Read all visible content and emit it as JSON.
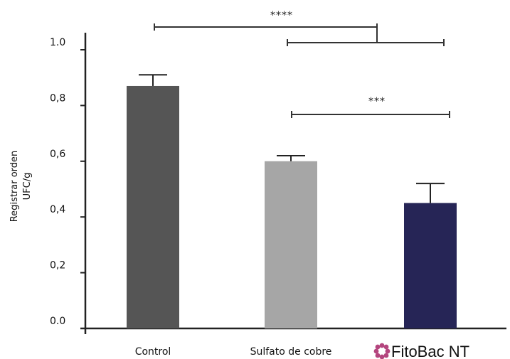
{
  "chart_data": {
    "type": "bar",
    "title": "",
    "xlabel": "",
    "ylabel_lines": [
      "Registrar orden",
      "UFC/g"
    ],
    "ylim": [
      0,
      1.1
    ],
    "y_ticks": [
      {
        "value": 0.0,
        "label": "0.0"
      },
      {
        "value": 0.2,
        "label": "0,2"
      },
      {
        "value": 0.4,
        "label": "0,4"
      },
      {
        "value": 0.6,
        "label": "0,6"
      },
      {
        "value": 0.8,
        "label": "0,8"
      },
      {
        "value": 1.0,
        "label": "1.0"
      }
    ],
    "categories": [
      "Control",
      "Sulfato de cobre",
      "FitoBac NT"
    ],
    "values": [
      0.87,
      0.6,
      0.45
    ],
    "errors": [
      0.04,
      0.02,
      0.07
    ],
    "colors": [
      "#555555",
      "#a6a6a6",
      "#262556"
    ],
    "grid": false,
    "legend": "none",
    "brand_icon": "flower-logo-icon",
    "brand_color": "#b4457e",
    "significance": [
      {
        "from": 0,
        "to": "bracket",
        "label": "****"
      },
      {
        "from": 1,
        "to": 2,
        "label": ""
      },
      {
        "from": 1,
        "to": 2,
        "label": "***"
      }
    ]
  }
}
